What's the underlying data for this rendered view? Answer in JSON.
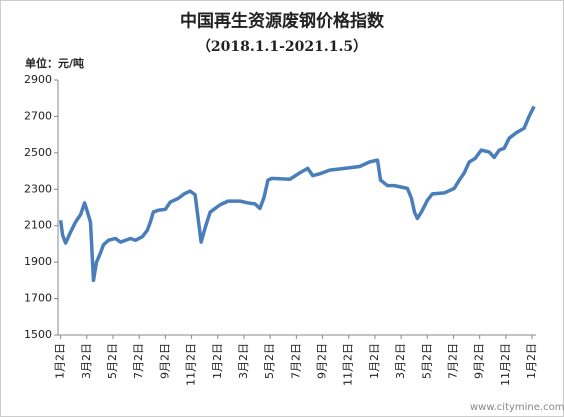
{
  "chart_data": {
    "type": "line",
    "title": "中国再生资源废钢价格指数",
    "subtitle": "（2018.1.1-2021.1.5）",
    "y_unit_label": "单位：元/吨",
    "watermark": "www.citymine.com.cn",
    "x": [
      0,
      0.15,
      0.38,
      0.76,
      1.14,
      1.52,
      1.83,
      2.05,
      2.28,
      2.51,
      2.74,
      3.04,
      3.27,
      3.65,
      4.19,
      4.57,
      5.33,
      5.71,
      6.24,
      6.62,
      6.85,
      7.08,
      7.46,
      8.0,
      8.37,
      8.98,
      9.44,
      9.89,
      10.27,
      10.5,
      10.73,
      11.04,
      11.42,
      11.8,
      12.18,
      12.79,
      13.7,
      14.31,
      14.84,
      15.22,
      15.53,
      15.83,
      16.13,
      17.5,
      18.26,
      18.87,
      19.25,
      19.79,
      20.55,
      21.69,
      22.83,
      23.59,
      24.2,
      24.43,
      24.96,
      25.49,
      26.48,
      26.79,
      27.02,
      27.24,
      27.55,
      28.01,
      28.39,
      29.3,
      30.06,
      30.44,
      30.82,
      31.2,
      31.66,
      32.12,
      32.72,
      33.11,
      33.49,
      33.87,
      34.25,
      34.78,
      35.39,
      35.77,
      36.15
    ],
    "series": [
      {
        "name": "中国再生资源废钢价格指数",
        "color": "#4a7ebb",
        "values": [
          2130,
          2049,
          2005,
          2065,
          2120,
          2160,
          2225,
          2175,
          2120,
          1800,
          1900,
          1950,
          1995,
          2020,
          2030,
          2010,
          2030,
          2020,
          2040,
          2075,
          2120,
          2175,
          2185,
          2190,
          2230,
          2250,
          2275,
          2290,
          2270,
          2140,
          2010,
          2090,
          2175,
          2195,
          2215,
          2235,
          2235,
          2225,
          2220,
          2195,
          2255,
          2350,
          2360,
          2355,
          2390,
          2415,
          2375,
          2385,
          2405,
          2415,
          2425,
          2450,
          2460,
          2350,
          2320,
          2320,
          2305,
          2250,
          2175,
          2140,
          2175,
          2240,
          2275,
          2280,
          2305,
          2350,
          2390,
          2450,
          2470,
          2515,
          2505,
          2475,
          2515,
          2525,
          2580,
          2610,
          2635,
          2700,
          2755
        ]
      }
    ],
    "xlim": [
      -0.2,
      36.3
    ],
    "xticks": [
      {
        "value": 0,
        "label": "1月2日"
      },
      {
        "value": 2,
        "label": "3月2日"
      },
      {
        "value": 4,
        "label": "5月2日"
      },
      {
        "value": 6,
        "label": "7月2日"
      },
      {
        "value": 8,
        "label": "9月2日"
      },
      {
        "value": 10,
        "label": "11月2日"
      },
      {
        "value": 12,
        "label": "1月2日"
      },
      {
        "value": 14,
        "label": "3月2日"
      },
      {
        "value": 16,
        "label": "5月2日"
      },
      {
        "value": 18,
        "label": "7月2日"
      },
      {
        "value": 20,
        "label": "9月2日"
      },
      {
        "value": 22,
        "label": "11月2日"
      },
      {
        "value": 24,
        "label": "1月2日"
      },
      {
        "value": 26,
        "label": "3月2日"
      },
      {
        "value": 28,
        "label": "5月2日"
      },
      {
        "value": 30,
        "label": "7月2日"
      },
      {
        "value": 32,
        "label": "9月2日"
      },
      {
        "value": 34,
        "label": "11月2日"
      },
      {
        "value": 36,
        "label": "1月2日"
      }
    ],
    "ylim": [
      1500,
      2900
    ],
    "yticks": [
      1500,
      1700,
      1900,
      2100,
      2300,
      2500,
      2700,
      2900
    ],
    "grid": false
  }
}
